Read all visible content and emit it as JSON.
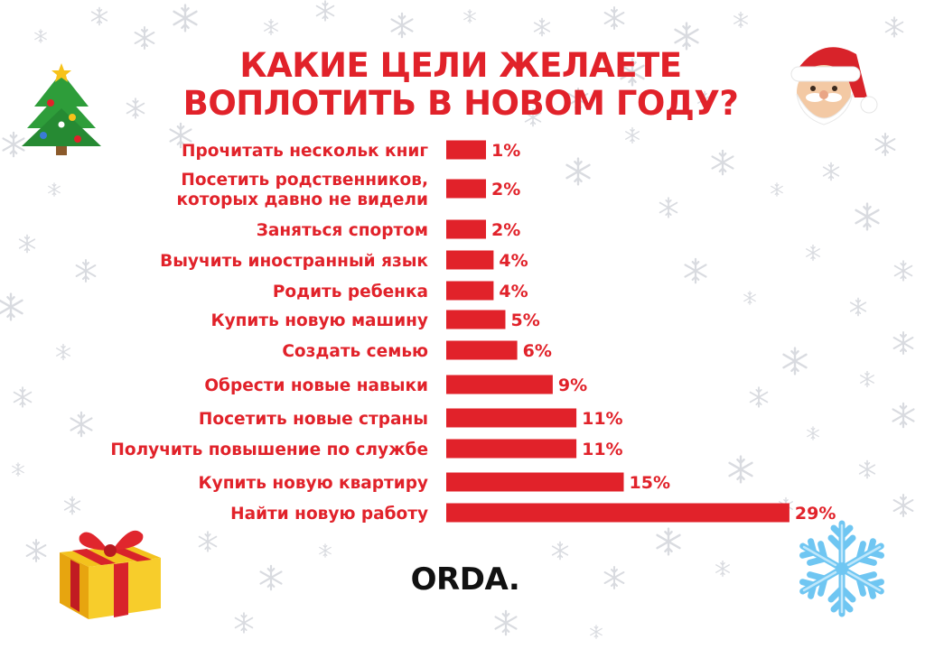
{
  "title_line1": "КАКИЕ ЦЕЛИ ЖЕЛАЕТЕ",
  "title_line2": "ВОПЛОТИТЬ В НОВОМ ГОДУ?",
  "brand": "ORDA.",
  "colors": {
    "accent": "#e1222a",
    "text": "#e1222a",
    "brand": "#111111"
  },
  "icons": [
    "christmas-tree-icon",
    "santa-icon",
    "gift-icon",
    "snowflake-icon"
  ],
  "chart_data": {
    "type": "bar",
    "orientation": "horizontal",
    "title": "КАКИЕ ЦЕЛИ ЖЕЛАЕТЕ ВОПЛОТИТЬ В НОВОМ ГОДУ?",
    "unit": "%",
    "categories": [
      [
        "Прочитать нескольк книг"
      ],
      [
        "Посетить родственников,",
        "которых давно не видели"
      ],
      [
        "Заняться спортом"
      ],
      [
        "Выучить иностранный язык"
      ],
      [
        "Родить ребенка"
      ],
      [
        "Купить новую машину"
      ],
      [
        "Создать семью"
      ],
      [
        "Обрести новые навыки"
      ],
      [
        "Посетить новые страны"
      ],
      [
        "Получить повышение по службе"
      ],
      [
        "Купить новую квартиру"
      ],
      [
        "Найти новую работу"
      ]
    ],
    "values": [
      1,
      2,
      2,
      4,
      4,
      5,
      6,
      9,
      11,
      11,
      15,
      29
    ],
    "labels": [
      "1%",
      "2%",
      "2%",
      "4%",
      "4%",
      "5%",
      "6%",
      "9%",
      "11%",
      "11%",
      "15%",
      "29%"
    ],
    "xlabel": "",
    "ylabel": "",
    "grid": false,
    "legend": "none"
  }
}
